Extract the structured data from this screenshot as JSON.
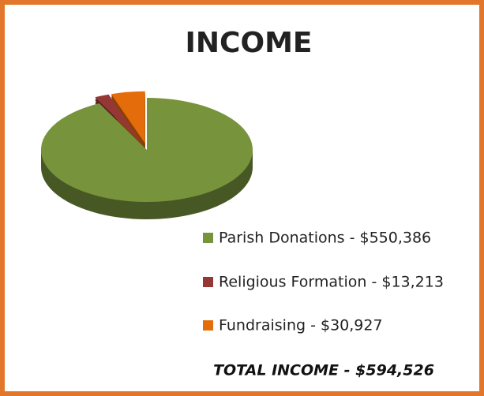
{
  "chart_data": {
    "type": "pie",
    "title": "INCOME",
    "categories": [
      "Parish Donations - $550,386",
      "Religious Formation - $13,213",
      "Fundraising - $30,927"
    ],
    "values": [
      550386,
      13213,
      30927
    ],
    "colors": [
      "#77933c",
      "#953735",
      "#e46c0a"
    ],
    "total": "TOTAL INCOME - $594,526",
    "legend": "right"
  }
}
